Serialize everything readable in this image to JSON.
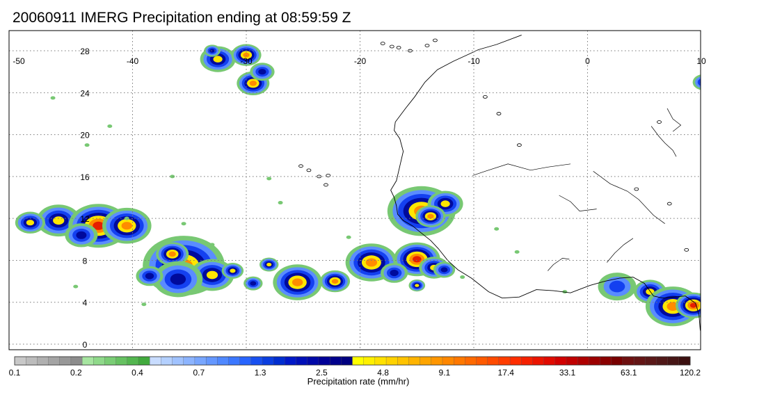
{
  "title": "20060911 IMERG Precipitation ending at 08:59:59 Z",
  "map": {
    "lon_labels": [
      "-50",
      "-40",
      "-30",
      "-20",
      "-10",
      "0",
      "10"
    ],
    "lat_labels": [
      "28",
      "24",
      "20",
      "16",
      "12",
      "8",
      "4",
      "0"
    ],
    "lon_values": [
      -50,
      -40,
      -30,
      -20,
      -10,
      0,
      10
    ],
    "lat_values": [
      28,
      24,
      20,
      16,
      12,
      8,
      4,
      0
    ],
    "extent": {
      "lon": [
        -50,
        10
      ],
      "lat": [
        -0.5,
        29.5
      ]
    }
  },
  "colorbar": {
    "label": "Precipitation rate (mm/hr)",
    "tick_labels": [
      "0.1",
      "0.2",
      "0.4",
      "0.7",
      "1.3",
      "2.5",
      "4.8",
      "9.1",
      "17.4",
      "33.1",
      "63.1",
      "120.2"
    ],
    "colors": [
      "#c8c8c8",
      "#bcbcbc",
      "#b0b0b0",
      "#a4a4a4",
      "#989898",
      "#8c8c8c",
      "#a6e5a0",
      "#8fd98a",
      "#7acd75",
      "#66c161",
      "#53b64f",
      "#41aa3d",
      "#c8dcff",
      "#b4d0ff",
      "#a0c2ff",
      "#8cb4ff",
      "#78a6ff",
      "#6497ff",
      "#4f88ff",
      "#3b77ff",
      "#2764ff",
      "#1850f0",
      "#0b3ee0",
      "#002dd0",
      "#0018c8",
      "#000fb8",
      "#0008a8",
      "#000098",
      "#00008c",
      "#000080",
      "#ffff00",
      "#fff000",
      "#ffe100",
      "#ffd200",
      "#ffc300",
      "#ffb400",
      "#ffa500",
      "#ff9600",
      "#ff8700",
      "#ff7800",
      "#ff6900",
      "#ff5a00",
      "#ff4b00",
      "#ff3c00",
      "#ff2d00",
      "#f52000",
      "#eb1400",
      "#e10a00",
      "#d20000",
      "#c00000",
      "#ae0000",
      "#9c0000",
      "#8a0000",
      "#780000",
      "#6e1010",
      "#641515",
      "#5a1818",
      "#501818",
      "#461616",
      "#3c1010"
    ]
  },
  "rain_colors": {
    "light_green": "#78c873",
    "blue_light": "#5a8cff",
    "blue": "#1440f0",
    "navy": "#000a9c",
    "yellow": "#ffe600",
    "orange": "#ff8c00",
    "red": "#e61e00"
  }
}
